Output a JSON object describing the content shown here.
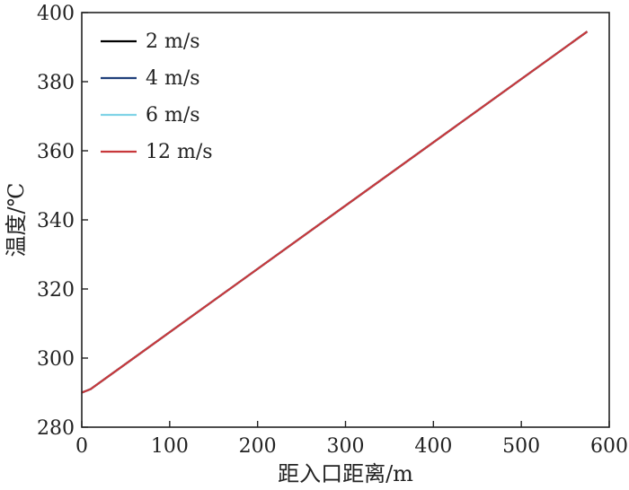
{
  "chart_data": {
    "type": "line",
    "xlabel": "距入口距离/m",
    "ylabel": "温度/℃",
    "xlim": [
      0,
      600
    ],
    "ylim": [
      280,
      400
    ],
    "xticks": [
      0,
      100,
      200,
      300,
      400,
      500,
      600
    ],
    "yticks": [
      280,
      300,
      320,
      340,
      360,
      380,
      400
    ],
    "grid": false,
    "legend_position": "top-left",
    "series": [
      {
        "name": "2 m/s",
        "color": "#000000",
        "x": [
          0,
          10,
          575
        ],
        "y": [
          290.0,
          291.0,
          394.5
        ]
      },
      {
        "name": "4 m/s",
        "color": "#1f3f7a",
        "x": [
          0,
          10,
          575
        ],
        "y": [
          290.0,
          291.0,
          394.5
        ]
      },
      {
        "name": "6 m/s",
        "color": "#7fd3e6",
        "x": [
          0,
          10,
          575
        ],
        "y": [
          290.0,
          291.0,
          394.5
        ]
      },
      {
        "name": "12 m/s",
        "color": "#c8383b",
        "x": [
          0,
          10,
          575
        ],
        "y": [
          290.0,
          291.0,
          394.5
        ]
      }
    ]
  }
}
